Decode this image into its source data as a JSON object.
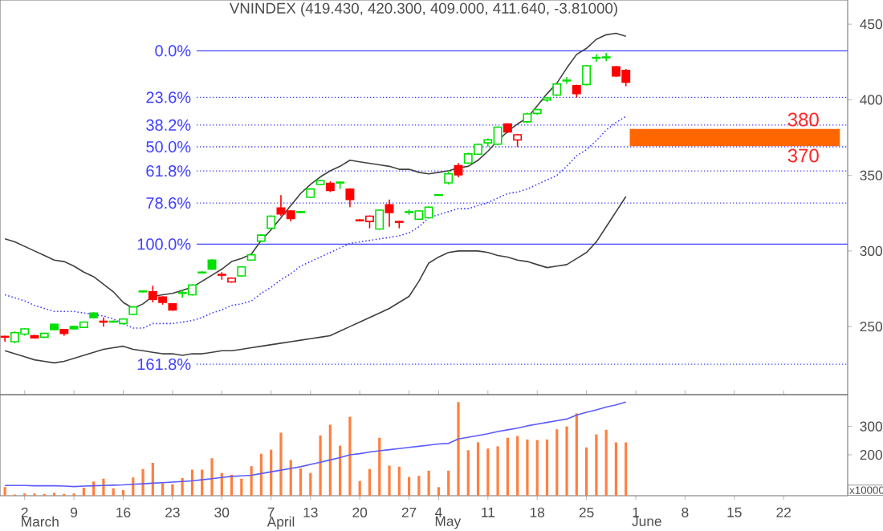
{
  "chart_data": [
    {
      "type": "candlestick",
      "title": "VNINDEX (419.430, 420.300, 409.000, 411.640, -3.81000)",
      "categories": [
        null,
        null,
        "2",
        null,
        null,
        null,
        null,
        "9",
        null,
        null,
        null,
        null,
        "16",
        null,
        null,
        null,
        null,
        "23",
        null,
        null,
        null,
        null,
        "30",
        null,
        null,
        null,
        null,
        "7",
        null,
        null,
        null,
        "13",
        null,
        null,
        null,
        null,
        "20",
        null,
        null,
        null,
        null,
        "27",
        null,
        null,
        "4",
        null,
        null,
        null,
        null,
        "11",
        null,
        null,
        null,
        null,
        "18",
        null,
        null,
        null,
        null,
        "25",
        null,
        null,
        null,
        null,
        "1",
        null,
        null,
        null,
        null,
        "8",
        null,
        null,
        null,
        null,
        "15",
        null,
        null,
        null,
        null,
        "22",
        null,
        null,
        null,
        null,
        null,
        null
      ],
      "ohlc": [
        [
          243.5,
          244,
          240,
          243
        ],
        [
          240,
          247,
          239,
          246
        ],
        [
          245,
          249,
          244,
          248.5
        ],
        [
          244,
          244.5,
          242,
          242.5
        ],
        [
          243,
          246,
          242.5,
          245.5
        ],
        [
          251.5,
          252,
          247.5,
          248
        ],
        [
          248,
          248.5,
          244,
          245.5
        ],
        [
          250,
          250.5,
          248,
          248.5
        ],
        [
          249.5,
          253.5,
          249,
          253
        ],
        [
          259,
          259.5,
          255.5,
          256
        ],
        [
          253.5,
          256,
          250,
          253
        ],
        [
          253,
          254,
          252.5,
          253.5
        ],
        [
          252,
          255.5,
          251.5,
          255
        ],
        [
          258,
          263.5,
          257.5,
          263
        ],
        [
          273,
          274,
          272.5,
          273.5
        ],
        [
          273,
          277,
          266,
          268
        ],
        [
          269.5,
          270,
          264.5,
          266
        ],
        [
          265,
          265.5,
          260.5,
          261
        ],
        [
          272,
          274,
          269,
          272.5
        ],
        [
          271,
          278,
          270.5,
          277.5
        ],
        [
          285.5,
          286.5,
          285,
          286
        ],
        [
          294,
          294.5,
          287.5,
          288
        ],
        [
          284.5,
          286,
          281,
          284
        ],
        [
          279.5,
          282.5,
          279,
          282
        ],
        [
          283.5,
          290,
          283,
          289.5
        ],
        [
          294,
          298,
          293.5,
          297.5
        ],
        [
          306.5,
          311,
          306,
          310.5
        ],
        [
          315,
          323.5,
          314.5,
          323
        ],
        [
          328.5,
          337,
          323,
          324.5
        ],
        [
          326.5,
          327,
          319.5,
          321.5
        ],
        [
          325.5,
          326.5,
          325,
          326
        ],
        [
          335.5,
          341.5,
          335,
          341
        ],
        [
          344,
          347,
          343.5,
          346.5
        ],
        [
          344.7,
          346,
          339,
          340
        ],
        [
          345,
          346,
          341,
          345.5
        ],
        [
          340.9,
          341.5,
          329,
          334.1
        ],
        [
          320.5,
          321,
          319.5,
          320
        ],
        [
          319.5,
          323.5,
          315,
          323
        ],
        [
          314.5,
          327.5,
          314,
          327
        ],
        [
          330.5,
          334,
          316,
          325.5
        ],
        [
          319.5,
          320,
          315,
          319
        ],
        [
          325.5,
          327.5,
          324,
          326
        ],
        [
          321,
          327,
          320.5,
          326.5
        ],
        [
          322,
          329.5,
          321.5,
          329
        ],
        [
          336.8,
          337.5,
          336.5,
          337.2
        ],
        [
          345,
          353,
          344,
          351
        ],
        [
          356.4,
          358.2,
          348.7,
          350.4
        ],
        [
          358.2,
          365,
          357.5,
          364.2
        ],
        [
          364,
          371,
          363.5,
          370.5
        ],
        [
          371.5,
          374.5,
          369,
          373.5
        ],
        [
          370.6,
          382.5,
          370,
          381.9
        ],
        [
          384,
          384.5,
          378,
          378.7
        ],
        [
          373.4,
          377.5,
          368.8,
          376.9
        ],
        [
          385.4,
          391.5,
          384.5,
          390.7
        ],
        [
          391,
          394,
          390,
          393.5
        ],
        [
          399.9,
          401.5,
          398.5,
          401.3
        ],
        [
          403.1,
          411,
          402.5,
          410.5
        ],
        [
          412.5,
          415,
          410.5,
          413
        ],
        [
          409.4,
          410,
          401.5,
          404.1
        ],
        [
          410.1,
          423,
          409.5,
          422.5
        ],
        [
          427.5,
          430,
          425,
          428
        ],
        [
          427.8,
          431,
          425.5,
          428.3
        ],
        [
          421.8,
          422.5,
          415,
          415.8
        ],
        [
          419.43,
          420.3,
          409,
          411.64
        ],
        null,
        null,
        null,
        null,
        null,
        null,
        null,
        null,
        null,
        null,
        null,
        null,
        null,
        null,
        null,
        null,
        null,
        null,
        null,
        null,
        null,
        null
      ],
      "colors": [
        "#ff0000",
        "#00e000",
        "#00e000",
        "#ff0000",
        "#00e000",
        "#00e000",
        "#ff0000",
        "#00e000",
        "#00e000",
        "#00e000",
        "#ff0000",
        "#00e000",
        "#00e000",
        "#00e000",
        "#00e000",
        "#ff0000",
        "#ff0000",
        "#ff0000",
        "#00e000",
        "#00e000",
        "#00e000",
        "#00e000",
        "#ff0000",
        "#ff0000",
        "#00e000",
        "#00e000",
        "#00e000",
        "#00e000",
        "#ff0000",
        "#ff0000",
        "#00e000",
        "#00e000",
        "#00e000",
        "#ff0000",
        "#00e000",
        "#ff0000",
        "#ff0000",
        "#ff0000",
        "#00e000",
        "#ff0000",
        "#ff0000",
        "#00e000",
        "#00e000",
        "#00e000",
        "#00e000",
        "#00e000",
        "#ff0000",
        "#00e000",
        "#00e000",
        "#00e000",
        "#00e000",
        "#ff0000",
        "#ff0000",
        "#00e000",
        "#00e000",
        "#00e000",
        "#00e000",
        "#00e000",
        "#ff0000",
        "#00e000",
        "#00e000",
        "#00e000",
        "#ff0000",
        "#ff0000",
        null,
        null,
        null,
        null,
        null,
        null,
        null,
        null,
        null,
        null,
        null,
        null,
        null,
        null,
        null,
        null,
        null,
        null,
        null,
        null,
        null,
        null
      ],
      "series": [
        {
          "type": "line",
          "color": "#404040",
          "line_style": "solid",
          "values": [
            308,
            306,
            303,
            300,
            297,
            294,
            293,
            290,
            286,
            283,
            278,
            273,
            266,
            262,
            265,
            270,
            271,
            272,
            274,
            276,
            280,
            284,
            288,
            293,
            295,
            298,
            307,
            314,
            322,
            330,
            338,
            344,
            349,
            353,
            356,
            360,
            359,
            358,
            357,
            356,
            354,
            354,
            352,
            351,
            352,
            353,
            355,
            356,
            360,
            366,
            373,
            379,
            384,
            388,
            396,
            404,
            411,
            421,
            430,
            434,
            440,
            443,
            444,
            442,
            null,
            null,
            null,
            null,
            null,
            null,
            null,
            null,
            null,
            null,
            null,
            null,
            null,
            null,
            null,
            null,
            null,
            null,
            null,
            null,
            null,
            null
          ]
        },
        {
          "type": "line",
          "color": "#4040ff",
          "line_style": "dotted",
          "values": [
            271,
            269,
            267,
            264,
            262,
            260,
            260,
            260,
            259,
            258,
            257,
            255,
            252,
            249,
            249,
            252,
            252,
            252,
            253,
            254,
            256,
            259,
            261,
            264,
            265,
            267,
            272,
            276,
            281,
            285,
            290,
            293,
            296,
            299,
            302,
            305,
            306,
            307,
            308,
            309,
            310,
            312,
            316,
            322,
            324,
            326,
            328,
            328,
            330,
            332,
            335,
            338,
            339,
            341,
            344,
            347,
            350,
            356,
            363,
            367,
            373,
            380,
            385,
            389,
            null,
            null,
            null,
            null,
            null,
            null,
            null,
            null,
            null,
            null,
            null,
            null,
            null,
            null,
            null,
            null,
            null,
            null,
            null,
            null,
            null,
            null
          ]
        },
        {
          "type": "line",
          "color": "#404040",
          "line_style": "solid",
          "values": [
            234,
            232,
            230,
            228,
            227,
            226,
            227,
            229,
            231,
            233,
            235,
            236,
            237,
            235,
            234,
            233,
            232,
            232,
            231,
            232,
            232,
            233,
            234,
            234,
            235,
            236,
            237,
            238,
            239,
            240,
            241,
            242,
            243,
            244,
            247,
            250,
            253,
            256,
            259,
            262,
            266,
            270,
            280,
            292,
            296,
            299,
            300,
            300,
            300,
            299,
            297,
            296,
            294,
            293,
            291,
            289,
            290,
            291,
            295,
            299,
            306,
            316,
            326,
            336,
            null,
            null,
            null,
            null,
            null,
            null,
            null,
            null,
            null,
            null,
            null,
            null,
            null,
            null,
            null,
            null,
            null,
            null,
            null,
            null,
            null,
            null
          ]
        }
      ],
      "ylim": [
        205,
        466
      ],
      "yticks": [
        250,
        300,
        350,
        400,
        450
      ],
      "ref_lines": [
        {
          "axis": "y",
          "value": 432.4,
          "color": "#4040ff",
          "line_style": "solid"
        },
        {
          "axis": "y",
          "value": 401.6,
          "color": "#4040ff",
          "line_style": "dotted"
        },
        {
          "axis": "y",
          "value": 383.3,
          "color": "#4040ff",
          "line_style": "dotted"
        },
        {
          "axis": "y",
          "value": 368.9,
          "color": "#4040ff",
          "line_style": "dotted"
        },
        {
          "axis": "y",
          "value": 352.9,
          "color": "#4040ff",
          "line_style": "dotted"
        },
        {
          "axis": "y",
          "value": 331.7,
          "color": "#4040ff",
          "line_style": "dotted"
        },
        {
          "axis": "y",
          "value": 304.5,
          "color": "#4040ff",
          "line_style": "solid"
        },
        {
          "axis": "y",
          "value": 225.1,
          "color": "#4040ff",
          "line_style": "dotted"
        }
      ],
      "bands": [
        {
          "axis": "y",
          "from": 370,
          "to": 380,
          "color": "#ff6600"
        }
      ],
      "annotations": [
        "0.0%",
        "23.6%",
        "38.2%",
        "50.0%",
        "61.8%",
        "78.6%",
        "100.0%",
        "161.8%",
        {
          "text": "380",
          "y": 380
        },
        {
          "text": "370",
          "y": 370
        }
      ],
      "tick_labels": "y"
    },
    {
      "type": "bar",
      "categories": [
        null,
        null,
        "2",
        null,
        null,
        null,
        null,
        "9",
        null,
        null,
        null,
        null,
        "16",
        null,
        null,
        null,
        null,
        "23",
        null,
        null,
        null,
        null,
        "30",
        null,
        null,
        null,
        null,
        "7",
        null,
        null,
        null,
        "13",
        null,
        null,
        null,
        null,
        "20",
        null,
        null,
        null,
        null,
        "27",
        null,
        null,
        "4",
        null,
        null,
        null,
        null,
        "11",
        null,
        null,
        null,
        null,
        "18",
        null,
        null,
        null,
        null,
        "25",
        null,
        null,
        null,
        null,
        "1",
        null,
        null,
        null,
        null,
        "8",
        null,
        null,
        null,
        null,
        "15",
        null,
        null,
        null,
        null,
        "22",
        null,
        null,
        null,
        null,
        null,
        null
      ],
      "series": [
        {
          "type": "bar",
          "color": "#ff7f3f",
          "values": [
            86,
            60,
            64,
            64,
            62,
            66,
            62,
            64,
            84,
            106,
            116,
            82,
            76,
            120,
            150,
            172,
            100,
            96,
            118,
            148,
            148,
            188,
            136,
            130,
            116,
            160,
            204,
            218,
            278,
            182,
            152,
            136,
            268,
            306,
            232,
            334,
            108,
            150,
            260,
            162,
            158,
            122,
            126,
            144,
            86,
            144,
            386,
            216,
            244,
            222,
            230,
            260,
            266,
            254,
            252,
            254,
            290,
            300,
            346,
            226,
            272,
            288,
            244,
            244,
            null,
            null,
            null,
            null,
            null,
            null,
            null,
            null,
            null,
            null,
            null,
            null,
            null,
            null,
            null,
            null,
            null,
            null,
            null,
            null,
            null,
            null
          ]
        },
        {
          "type": "line",
          "color": "#5a5aff",
          "values": [
            92,
            92,
            92,
            91,
            91,
            91,
            90,
            88,
            90,
            91,
            92,
            93,
            94,
            96,
            98,
            100,
            102,
            104,
            106,
            108,
            112,
            116,
            120,
            124,
            126,
            128,
            134,
            140,
            146,
            152,
            158,
            166,
            174,
            182,
            190,
            200,
            204,
            210,
            214,
            218,
            222,
            226,
            230,
            234,
            238,
            240,
            256,
            262,
            268,
            274,
            282,
            288,
            294,
            302,
            308,
            314,
            320,
            326,
            340,
            350,
            358,
            368,
            376,
            386,
            null,
            null,
            null,
            null,
            null,
            null,
            null,
            null,
            null,
            null,
            null,
            null,
            null,
            null,
            null,
            null,
            null,
            null,
            null,
            null,
            null,
            null
          ]
        }
      ],
      "ylim": [
        56,
        412
      ],
      "yticks": [
        200,
        300
      ],
      "annotations": [
        "x10000",
        "March",
        "April",
        "May",
        "June"
      ]
    }
  ]
}
